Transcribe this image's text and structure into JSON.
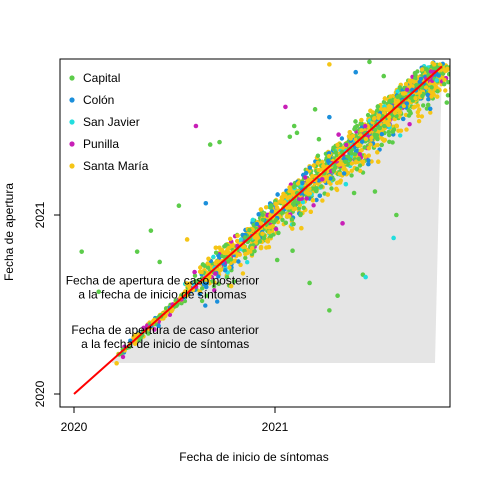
{
  "chart_data": {
    "type": "scatter",
    "xlabel": "Fecha de inicio de síntomas",
    "ylabel": "Fecha de apertura",
    "x_ticks": [
      {
        "value": "2020-01-01",
        "label": "2020"
      },
      {
        "value": "2021-01-01",
        "label": "2021"
      }
    ],
    "y_ticks": [
      {
        "value": "2020-01-01",
        "label": "2020"
      },
      {
        "value": "2021-01-01",
        "label": "2021"
      }
    ],
    "xlim": [
      "2019-12-01",
      "2021-11-15"
    ],
    "ylim": [
      "2019-12-01",
      "2021-11-15"
    ],
    "grid": false,
    "legend_position": "top-left",
    "reference_line": {
      "type": "identity",
      "color": "#ff0000",
      "from": "2020-01-01",
      "to": "2021-11-01"
    },
    "shaded_region": {
      "description_label": "below identity",
      "color": "#e5e5e5"
    },
    "annotations": [
      {
        "text": "Fecha de apertura de caso posterior\na la fecha de inicio de síntomas",
        "x": "2020-06-10",
        "y": "2020-08-12"
      },
      {
        "text": "Fecha de apertura de caso anterior\na la fecha de inicio de síntomas",
        "x": "2020-06-15",
        "y": "2020-05-03"
      }
    ],
    "series": [
      {
        "name": "Capital",
        "color": "#5ccc4a",
        "points": [
          [
            "2021-03-15",
            "2021-08-05"
          ],
          [
            "2021-02-10",
            "2021-06-18"
          ],
          [
            "2021-01-28",
            "2021-06-10"
          ],
          [
            "2021-02-05",
            "2021-07-02"
          ],
          [
            "2021-03-22",
            "2021-06-05"
          ],
          [
            "2020-07-10",
            "2021-01-20"
          ],
          [
            "2020-05-20",
            "2020-11-30"
          ],
          [
            "2020-09-05",
            "2021-05-25"
          ],
          [
            "2020-09-22",
            "2021-05-30"
          ],
          [
            "2020-06-05",
            "2020-09-27"
          ],
          [
            "2020-04-25",
            "2020-10-18"
          ],
          [
            "2020-01-15",
            "2020-10-18"
          ],
          [
            "2020-02-15",
            "2020-07-28"
          ],
          [
            "2021-04-10",
            "2020-06-20"
          ],
          [
            "2021-04-25",
            "2020-07-20"
          ],
          [
            "2021-03-05",
            "2020-08-15"
          ],
          [
            "2021-06-22",
            "2021-11-10"
          ],
          [
            "2021-07-18",
            "2021-10-12"
          ],
          [
            "2021-01-05",
            "2020-10-01"
          ],
          [
            "2021-02-02",
            "2020-10-20"
          ],
          [
            "2021-05-25",
            "2021-02-15"
          ],
          [
            "2021-07-02",
            "2021-02-18"
          ],
          [
            "2021-08-10",
            "2021-01-01"
          ],
          [
            "2021-06-10",
            "2020-09-01"
          ]
        ]
      },
      {
        "name": "Colón",
        "color": "#1b8fdb",
        "points": [
          [
            "2021-06-20",
            "2021-04-15"
          ],
          [
            "2021-05-28",
            "2021-10-20"
          ],
          [
            "2021-04-10",
            "2021-07-20"
          ],
          [
            "2020-08-28",
            "2021-01-25"
          ]
        ]
      },
      {
        "name": "San Javier",
        "color": "#22dede",
        "points": [
          [
            "2021-06-15",
            "2020-08-27"
          ],
          [
            "2021-08-05",
            "2020-11-15"
          ],
          [
            "2021-05-10",
            "2021-03-05"
          ]
        ]
      },
      {
        "name": "Punilla",
        "color": "#c81fb7",
        "points": [
          [
            "2020-08-10",
            "2021-07-02"
          ],
          [
            "2021-01-20",
            "2021-08-10"
          ],
          [
            "2021-05-04",
            "2020-12-15"
          ],
          [
            "2021-03-28",
            "2021-03-15"
          ]
        ]
      },
      {
        "name": "Santa María",
        "color": "#f5c516",
        "points": [
          [
            "2021-04-10",
            "2021-11-05"
          ],
          [
            "2021-02-18",
            "2020-12-05"
          ],
          [
            "2020-07-25",
            "2020-11-12"
          ],
          [
            "2021-07-08",
            "2021-04-20"
          ]
        ]
      }
    ]
  }
}
